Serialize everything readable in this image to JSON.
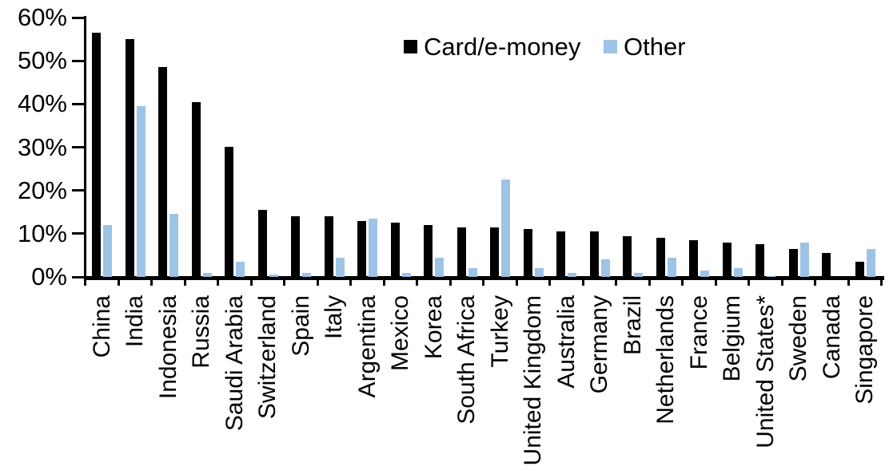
{
  "chart_data": {
    "type": "bar",
    "title": "",
    "xlabel": "",
    "ylabel": "",
    "ylim": [
      0,
      60
    ],
    "y_ticks": [
      "0%",
      "10%",
      "20%",
      "30%",
      "40%",
      "50%",
      "60%"
    ],
    "grid": false,
    "legend_position": "top-center",
    "axis_color": "#000000",
    "categories": [
      "China",
      "India",
      "Indonesia",
      "Russia",
      "Saudi Arabia",
      "Switzerland",
      "Spain",
      "Italy",
      "Argentina",
      "Mexico",
      "Korea",
      "South Africa",
      "Turkey",
      "United Kingdom",
      "Australia",
      "Germany",
      "Brazil",
      "Netherlands",
      "France",
      "Belgium",
      "United States*",
      "Sweden",
      "Canada",
      "Singapore"
    ],
    "series": [
      {
        "name": "Card/e-money",
        "color": "#000000",
        "values": [
          56.5,
          55,
          48.5,
          40.5,
          30,
          15.5,
          14,
          14,
          13,
          12.5,
          12,
          11.5,
          11.5,
          11,
          10.5,
          10.5,
          9.5,
          9,
          8.5,
          8,
          7.5,
          6.5,
          5.5,
          3.5
        ]
      },
      {
        "name": "Other",
        "color": "#9DC3E6",
        "values": [
          12,
          39.5,
          14.5,
          1,
          3.5,
          0.5,
          1,
          4.5,
          13.5,
          1,
          4.5,
          2,
          22.5,
          2,
          1,
          4,
          1,
          4.5,
          1.5,
          2,
          0.2,
          8,
          0,
          6.5
        ]
      }
    ]
  }
}
